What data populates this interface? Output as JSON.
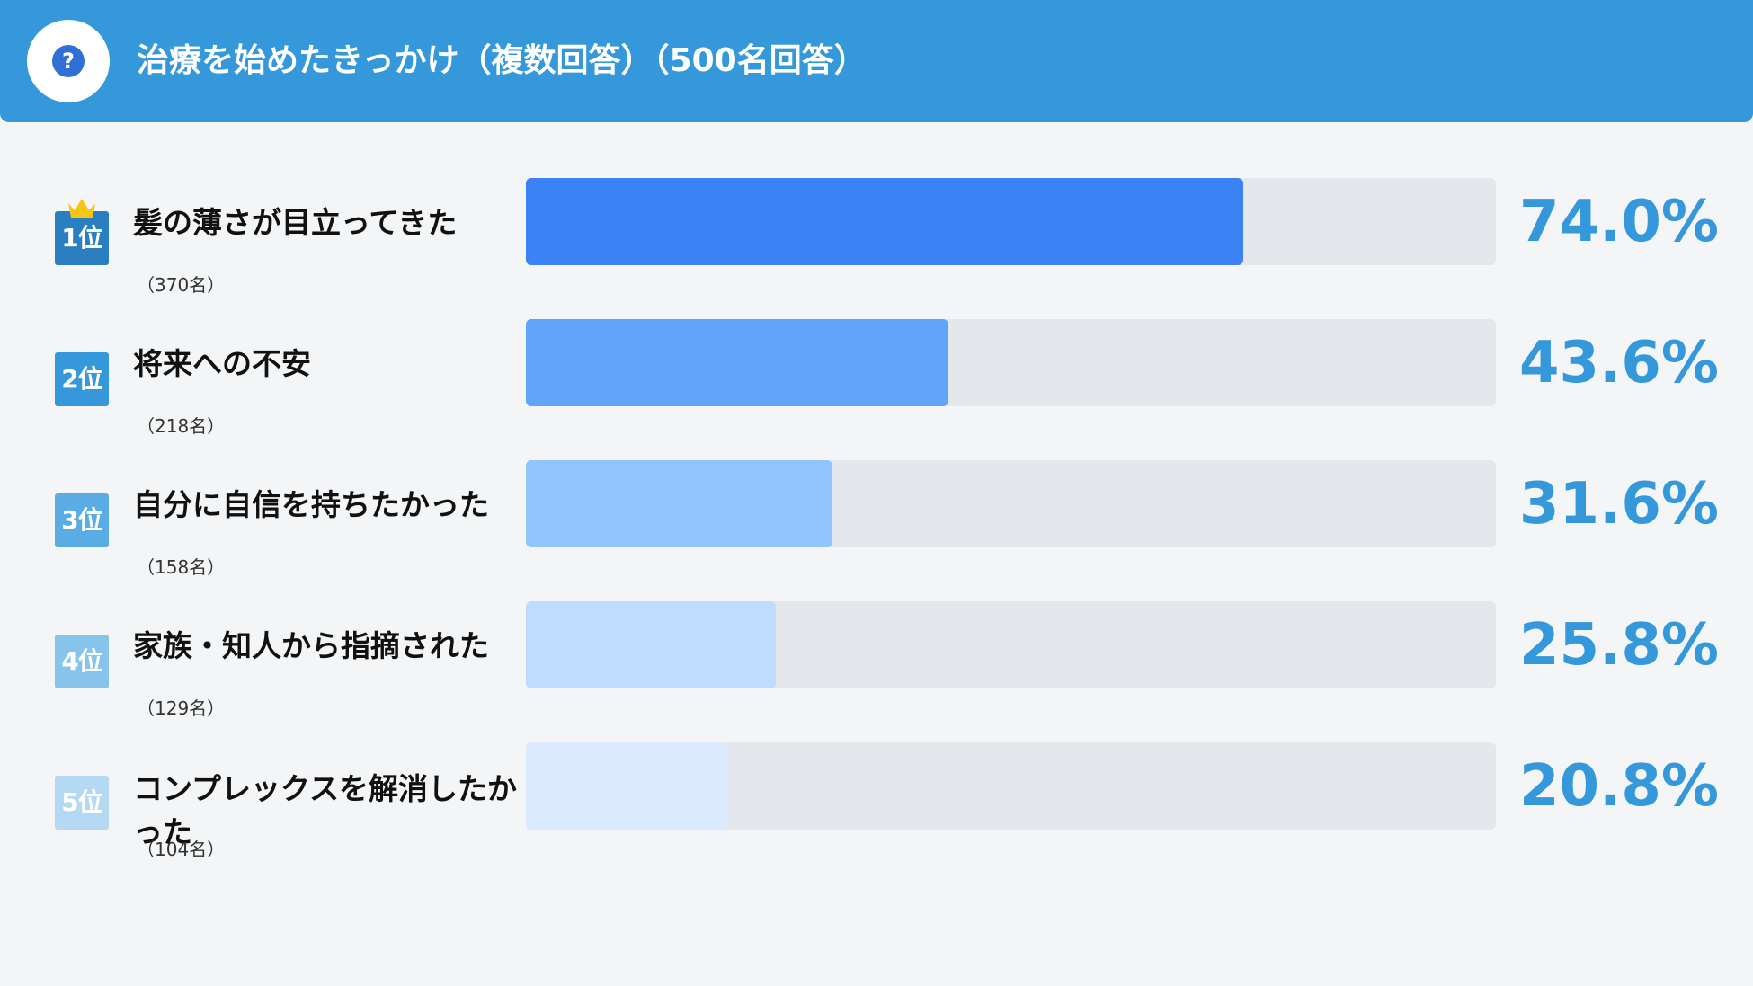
{
  "header": {
    "title": "治療を始めたきっかけ（複数回答）（500名回答）",
    "icon": "question-icon",
    "background": "#3498db"
  },
  "chart_data": {
    "type": "bar",
    "orientation": "horizontal",
    "title": "治療を始めたきっかけ（複数回答）（500名回答）",
    "xlim": [
      0,
      100
    ],
    "categories": [
      "髪の薄さが目立ってきた",
      "将来への不安",
      "自分に自信を持ちたかった",
      "家族・知人から指摘された",
      "コンプレックスを解消したかった"
    ],
    "ranks": [
      "1位",
      "2位",
      "3位",
      "4位",
      "5位"
    ],
    "counts": [
      "（370名）",
      "（218名）",
      "（158名）",
      "（129名）",
      "（104名）"
    ],
    "values": [
      74.0,
      43.6,
      31.6,
      25.8,
      20.8
    ],
    "value_labels": [
      "74.0%",
      "43.6%",
      "31.6%",
      "25.8%",
      "20.8%"
    ],
    "bar_colors": [
      "#3b82f6",
      "#60a5fa",
      "#93c5fd",
      "#bfdbfe",
      "#dbeafe"
    ],
    "rank_colors": [
      "#2a7fc0",
      "#3498db",
      "#5aade4",
      "#86c4ec",
      "#b5d9f3"
    ],
    "track_color": "#e4e7eb",
    "value_color": "#3498db"
  }
}
